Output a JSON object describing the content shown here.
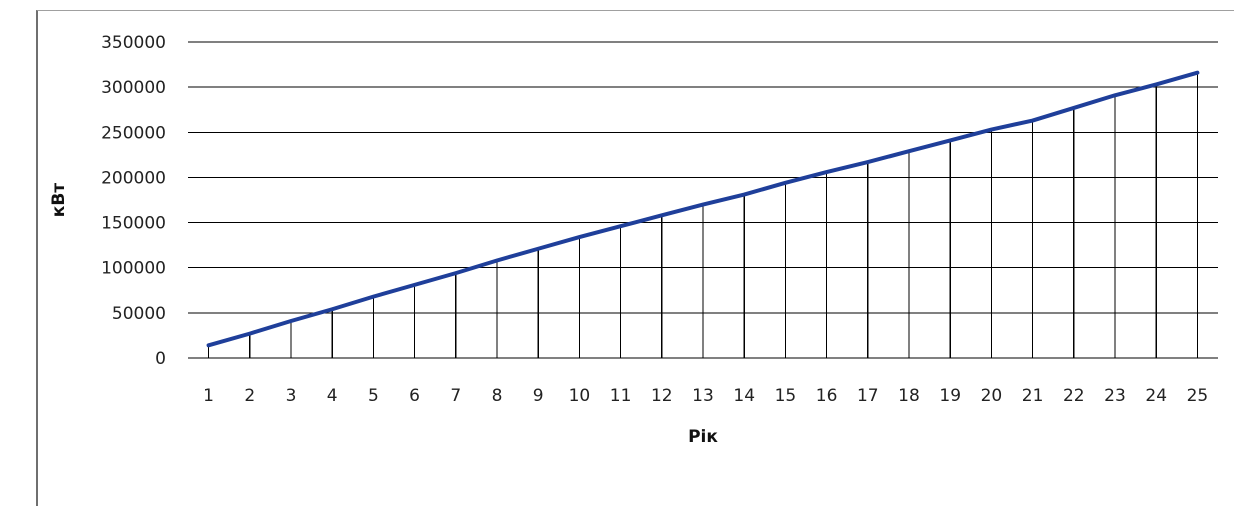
{
  "chart_data": {
    "type": "line",
    "title": "",
    "xlabel": "Рік",
    "ylabel": "кВт",
    "x": [
      "1",
      "2",
      "3",
      "4",
      "5",
      "6",
      "7",
      "8",
      "9",
      "10",
      "11",
      "12",
      "13",
      "14",
      "15",
      "16",
      "17",
      "18",
      "19",
      "20",
      "21",
      "22",
      "23",
      "24",
      "25"
    ],
    "ylim": [
      0,
      350000
    ],
    "yticks": [
      "0",
      "50000",
      "100000",
      "150000",
      "200000",
      "250000",
      "300000",
      "350000"
    ],
    "series": [
      {
        "values": [
          14000,
          27000,
          41000,
          54000,
          68000,
          81000,
          94000,
          108000,
          121000,
          134000,
          146000,
          158000,
          170000,
          181000,
          194000,
          206000,
          217000,
          229000,
          241000,
          253000,
          263000,
          277000,
          291000,
          303000,
          316000
        ]
      }
    ],
    "grid": "horizontal",
    "drop_lines": true,
    "colors": {
      "line": "#1f3f9a",
      "grid": "#000000",
      "drop": "#000000"
    }
  }
}
